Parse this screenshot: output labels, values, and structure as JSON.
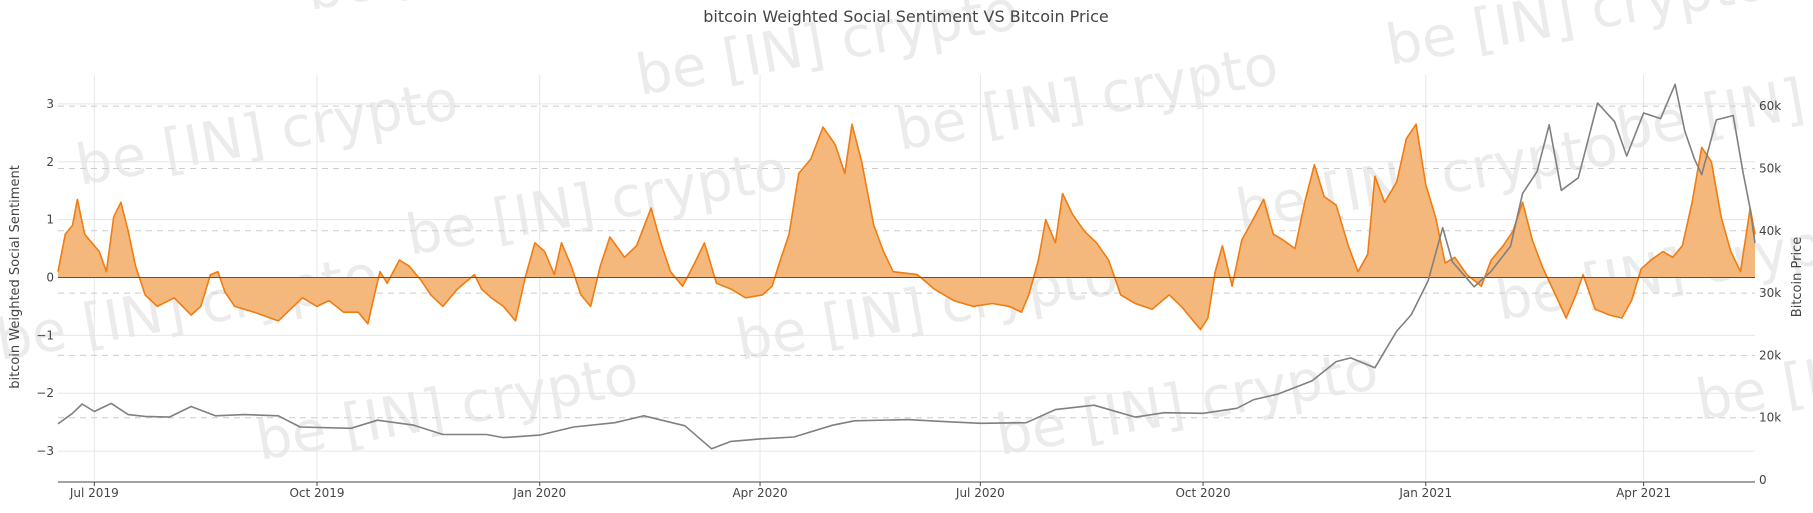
{
  "chart_data": {
    "type": "area",
    "title": "bitcoin Weighted Social Sentiment VS Bitcoin Price",
    "y_left_label": "bitcoin Weighted Social Sentiment",
    "y_right_label": "Bitcoin Price",
    "y_left_ticks": [
      "3",
      "2",
      "1",
      "0",
      "−1",
      "−2",
      "−3"
    ],
    "y_left_tick_values": [
      3,
      2,
      1,
      0,
      -1,
      -2,
      -3
    ],
    "y_right_ticks": [
      "60k",
      "50k",
      "40k",
      "30k",
      "20k",
      "10k",
      "0"
    ],
    "y_right_tick_values": [
      60000,
      50000,
      40000,
      30000,
      20000,
      10000,
      0
    ],
    "x_ticks": [
      "Jul 2019",
      "Oct 2019",
      "Jan 2020",
      "Apr 2020",
      "Jul 2020",
      "Oct 2020",
      "Jan 2021",
      "Apr 2021"
    ],
    "x_tick_dates": [
      "2019-07-01",
      "2019-10-01",
      "2020-01-01",
      "2020-04-01",
      "2020-07-01",
      "2020-10-01",
      "2021-01-01",
      "2021-04-01"
    ],
    "x_range": [
      "2019-06-16",
      "2021-05-17"
    ],
    "y_left_range": [
      -3.5,
      3.5
    ],
    "y_right_range": [
      0,
      65000
    ],
    "grid": true,
    "watermark_text": "be [IN] crypto",
    "colors": {
      "sentiment_line": "#f07c12",
      "sentiment_fill": "#f5b87c",
      "price_line": "#808080",
      "zero_line": "#555555",
      "grid": "#e6e6e6",
      "dashed_grid": "#cccccc",
      "text": "#444444"
    },
    "series": [
      {
        "axis": "left",
        "points": [
          [
            "2019-06-16",
            0.1
          ],
          [
            "2019-06-19",
            0.75
          ],
          [
            "2019-06-22",
            0.9
          ],
          [
            "2019-06-24",
            1.35
          ],
          [
            "2019-06-27",
            0.75
          ],
          [
            "2019-06-30",
            0.6
          ],
          [
            "2019-07-03",
            0.45
          ],
          [
            "2019-07-06",
            0.1
          ],
          [
            "2019-07-09",
            1.05
          ],
          [
            "2019-07-12",
            1.3
          ],
          [
            "2019-07-15",
            0.8
          ],
          [
            "2019-07-18",
            0.2
          ],
          [
            "2019-07-22",
            -0.3
          ],
          [
            "2019-07-27",
            -0.5
          ],
          [
            "2019-08-03",
            -0.35
          ],
          [
            "2019-08-10",
            -0.65
          ],
          [
            "2019-08-14",
            -0.5
          ],
          [
            "2019-08-18",
            0.05
          ],
          [
            "2019-08-21",
            0.1
          ],
          [
            "2019-08-24",
            -0.25
          ],
          [
            "2019-08-28",
            -0.5
          ],
          [
            "2019-09-05",
            -0.6
          ],
          [
            "2019-09-15",
            -0.75
          ],
          [
            "2019-09-20",
            -0.55
          ],
          [
            "2019-09-25",
            -0.35
          ],
          [
            "2019-10-01",
            -0.5
          ],
          [
            "2019-10-06",
            -0.4
          ],
          [
            "2019-10-12",
            -0.6
          ],
          [
            "2019-10-18",
            -0.6
          ],
          [
            "2019-10-22",
            -0.8
          ],
          [
            "2019-10-25",
            -0.25
          ],
          [
            "2019-10-27",
            0.1
          ],
          [
            "2019-10-30",
            -0.1
          ],
          [
            "2019-11-04",
            0.3
          ],
          [
            "2019-11-08",
            0.2
          ],
          [
            "2019-11-13",
            -0.05
          ],
          [
            "2019-11-17",
            -0.3
          ],
          [
            "2019-11-22",
            -0.5
          ],
          [
            "2019-11-28",
            -0.2
          ],
          [
            "2019-12-05",
            0.05
          ],
          [
            "2019-12-08",
            -0.2
          ],
          [
            "2019-12-12",
            -0.35
          ],
          [
            "2019-12-17",
            -0.5
          ],
          [
            "2019-12-22",
            -0.75
          ],
          [
            "2019-12-26",
            0.0
          ],
          [
            "2019-12-30",
            0.6
          ],
          [
            "2020-01-03",
            0.45
          ],
          [
            "2020-01-07",
            0.05
          ],
          [
            "2020-01-10",
            0.6
          ],
          [
            "2020-01-14",
            0.2
          ],
          [
            "2020-01-18",
            -0.3
          ],
          [
            "2020-01-22",
            -0.5
          ],
          [
            "2020-01-26",
            0.2
          ],
          [
            "2020-01-30",
            0.7
          ],
          [
            "2020-02-05",
            0.35
          ],
          [
            "2020-02-10",
            0.55
          ],
          [
            "2020-02-16",
            1.2
          ],
          [
            "2020-02-20",
            0.6
          ],
          [
            "2020-02-24",
            0.1
          ],
          [
            "2020-02-29",
            -0.15
          ],
          [
            "2020-03-05",
            0.25
          ],
          [
            "2020-03-09",
            0.6
          ],
          [
            "2020-03-14",
            -0.1
          ],
          [
            "2020-03-20",
            -0.2
          ],
          [
            "2020-03-26",
            -0.35
          ],
          [
            "2020-04-02",
            -0.3
          ],
          [
            "2020-04-06",
            -0.15
          ],
          [
            "2020-04-09",
            0.25
          ],
          [
            "2020-04-13",
            0.75
          ],
          [
            "2020-04-17",
            1.8
          ],
          [
            "2020-04-22",
            2.05
          ],
          [
            "2020-04-27",
            2.6
          ],
          [
            "2020-05-02",
            2.3
          ],
          [
            "2020-05-06",
            1.8
          ],
          [
            "2020-05-09",
            2.65
          ],
          [
            "2020-05-13",
            2.0
          ],
          [
            "2020-05-18",
            0.9
          ],
          [
            "2020-05-22",
            0.45
          ],
          [
            "2020-05-26",
            0.1
          ],
          [
            "2020-06-05",
            0.05
          ],
          [
            "2020-06-12",
            -0.2
          ],
          [
            "2020-06-20",
            -0.4
          ],
          [
            "2020-06-28",
            -0.5
          ],
          [
            "2020-07-06",
            -0.45
          ],
          [
            "2020-07-13",
            -0.5
          ],
          [
            "2020-07-18",
            -0.6
          ],
          [
            "2020-07-21",
            -0.3
          ],
          [
            "2020-07-25",
            0.3
          ],
          [
            "2020-07-28",
            1.0
          ],
          [
            "2020-08-01",
            0.6
          ],
          [
            "2020-08-04",
            1.45
          ],
          [
            "2020-08-08",
            1.1
          ],
          [
            "2020-08-13",
            0.8
          ],
          [
            "2020-08-18",
            0.6
          ],
          [
            "2020-08-23",
            0.3
          ],
          [
            "2020-08-28",
            -0.3
          ],
          [
            "2020-09-03",
            -0.45
          ],
          [
            "2020-09-10",
            -0.55
          ],
          [
            "2020-09-17",
            -0.3
          ],
          [
            "2020-09-22",
            -0.5
          ],
          [
            "2020-09-26",
            -0.7
          ],
          [
            "2020-09-30",
            -0.9
          ],
          [
            "2020-10-03",
            -0.7
          ],
          [
            "2020-10-06",
            0.1
          ],
          [
            "2020-10-09",
            0.55
          ],
          [
            "2020-10-13",
            -0.15
          ],
          [
            "2020-10-17",
            0.65
          ],
          [
            "2020-10-21",
            0.95
          ],
          [
            "2020-10-26",
            1.35
          ],
          [
            "2020-10-30",
            0.75
          ],
          [
            "2020-11-03",
            0.65
          ],
          [
            "2020-11-08",
            0.5
          ],
          [
            "2020-11-12",
            1.3
          ],
          [
            "2020-11-16",
            1.95
          ],
          [
            "2020-11-20",
            1.4
          ],
          [
            "2020-11-25",
            1.25
          ],
          [
            "2020-11-30",
            0.55
          ],
          [
            "2020-12-04",
            0.1
          ],
          [
            "2020-12-08",
            0.4
          ],
          [
            "2020-12-11",
            1.75
          ],
          [
            "2020-12-15",
            1.3
          ],
          [
            "2020-12-20",
            1.65
          ],
          [
            "2020-12-24",
            2.4
          ],
          [
            "2020-12-28",
            2.65
          ],
          [
            "2021-01-01",
            1.6
          ],
          [
            "2021-01-05",
            1.05
          ],
          [
            "2021-01-09",
            0.25
          ],
          [
            "2021-01-13",
            0.35
          ],
          [
            "2021-01-18",
            0.05
          ],
          [
            "2021-01-24",
            -0.15
          ],
          [
            "2021-01-28",
            0.3
          ],
          [
            "2021-02-02",
            0.55
          ],
          [
            "2021-02-06",
            0.8
          ],
          [
            "2021-02-10",
            1.3
          ],
          [
            "2021-02-14",
            0.65
          ],
          [
            "2021-02-18",
            0.2
          ],
          [
            "2021-02-23",
            -0.25
          ],
          [
            "2021-02-28",
            -0.7
          ],
          [
            "2021-03-04",
            -0.3
          ],
          [
            "2021-03-07",
            0.05
          ],
          [
            "2021-03-12",
            -0.55
          ],
          [
            "2021-03-18",
            -0.65
          ],
          [
            "2021-03-23",
            -0.7
          ],
          [
            "2021-03-27",
            -0.4
          ],
          [
            "2021-03-31",
            0.15
          ],
          [
            "2021-04-04",
            0.3
          ],
          [
            "2021-04-09",
            0.45
          ],
          [
            "2021-04-13",
            0.35
          ],
          [
            "2021-04-17",
            0.55
          ],
          [
            "2021-04-21",
            1.3
          ],
          [
            "2021-04-25",
            2.25
          ],
          [
            "2021-04-29",
            2.0
          ],
          [
            "2021-05-03",
            1.05
          ],
          [
            "2021-05-07",
            0.45
          ],
          [
            "2021-05-11",
            0.1
          ],
          [
            "2021-05-15",
            1.2
          ],
          [
            "2021-05-17",
            0.75
          ]
        ]
      },
      {
        "axis": "right",
        "points": [
          [
            "2019-06-16",
            9000
          ],
          [
            "2019-06-22",
            10700
          ],
          [
            "2019-06-26",
            12200
          ],
          [
            "2019-07-01",
            11000
          ],
          [
            "2019-07-08",
            12300
          ],
          [
            "2019-07-15",
            10500
          ],
          [
            "2019-07-22",
            10200
          ],
          [
            "2019-08-01",
            10100
          ],
          [
            "2019-08-10",
            11800
          ],
          [
            "2019-08-20",
            10300
          ],
          [
            "2019-09-01",
            10500
          ],
          [
            "2019-09-15",
            10300
          ],
          [
            "2019-09-24",
            8500
          ],
          [
            "2019-10-15",
            8300
          ],
          [
            "2019-10-26",
            9600
          ],
          [
            "2019-11-10",
            8800
          ],
          [
            "2019-11-22",
            7300
          ],
          [
            "2019-12-10",
            7300
          ],
          [
            "2019-12-17",
            6800
          ],
          [
            "2020-01-01",
            7200
          ],
          [
            "2020-01-15",
            8500
          ],
          [
            "2020-02-01",
            9200
          ],
          [
            "2020-02-13",
            10300
          ],
          [
            "2020-03-01",
            8700
          ],
          [
            "2020-03-12",
            5000
          ],
          [
            "2020-03-20",
            6200
          ],
          [
            "2020-04-01",
            6600
          ],
          [
            "2020-04-15",
            6900
          ],
          [
            "2020-05-01",
            8800
          ],
          [
            "2020-05-10",
            9500
          ],
          [
            "2020-06-01",
            9700
          ],
          [
            "2020-06-15",
            9400
          ],
          [
            "2020-07-01",
            9100
          ],
          [
            "2020-07-20",
            9200
          ],
          [
            "2020-08-01",
            11300
          ],
          [
            "2020-08-17",
            12000
          ],
          [
            "2020-09-03",
            10100
          ],
          [
            "2020-09-15",
            10800
          ],
          [
            "2020-10-01",
            10700
          ],
          [
            "2020-10-15",
            11500
          ],
          [
            "2020-10-22",
            12900
          ],
          [
            "2020-11-01",
            13800
          ],
          [
            "2020-11-15",
            15900
          ],
          [
            "2020-11-25",
            19000
          ],
          [
            "2020-12-01",
            19600
          ],
          [
            "2020-12-11",
            18000
          ],
          [
            "2020-12-16",
            21300
          ],
          [
            "2020-12-20",
            23900
          ],
          [
            "2020-12-26",
            26500
          ],
          [
            "2021-01-02",
            32000
          ],
          [
            "2021-01-08",
            40500
          ],
          [
            "2021-01-12",
            35000
          ],
          [
            "2021-01-21",
            31000
          ],
          [
            "2021-01-28",
            33500
          ],
          [
            "2021-02-05",
            37500
          ],
          [
            "2021-02-10",
            46000
          ],
          [
            "2021-02-16",
            49500
          ],
          [
            "2021-02-21",
            57000
          ],
          [
            "2021-02-26",
            46500
          ],
          [
            "2021-03-05",
            48500
          ],
          [
            "2021-03-13",
            60500
          ],
          [
            "2021-03-20",
            57500
          ],
          [
            "2021-03-25",
            52000
          ],
          [
            "2021-04-01",
            58900
          ],
          [
            "2021-04-08",
            58000
          ],
          [
            "2021-04-14",
            63500
          ],
          [
            "2021-04-18",
            56000
          ],
          [
            "2021-04-22",
            51500
          ],
          [
            "2021-04-25",
            49000
          ],
          [
            "2021-05-01",
            57800
          ],
          [
            "2021-05-08",
            58500
          ],
          [
            "2021-05-12",
            49500
          ],
          [
            "2021-05-15",
            43500
          ],
          [
            "2021-05-17",
            38000
          ]
        ]
      }
    ]
  }
}
